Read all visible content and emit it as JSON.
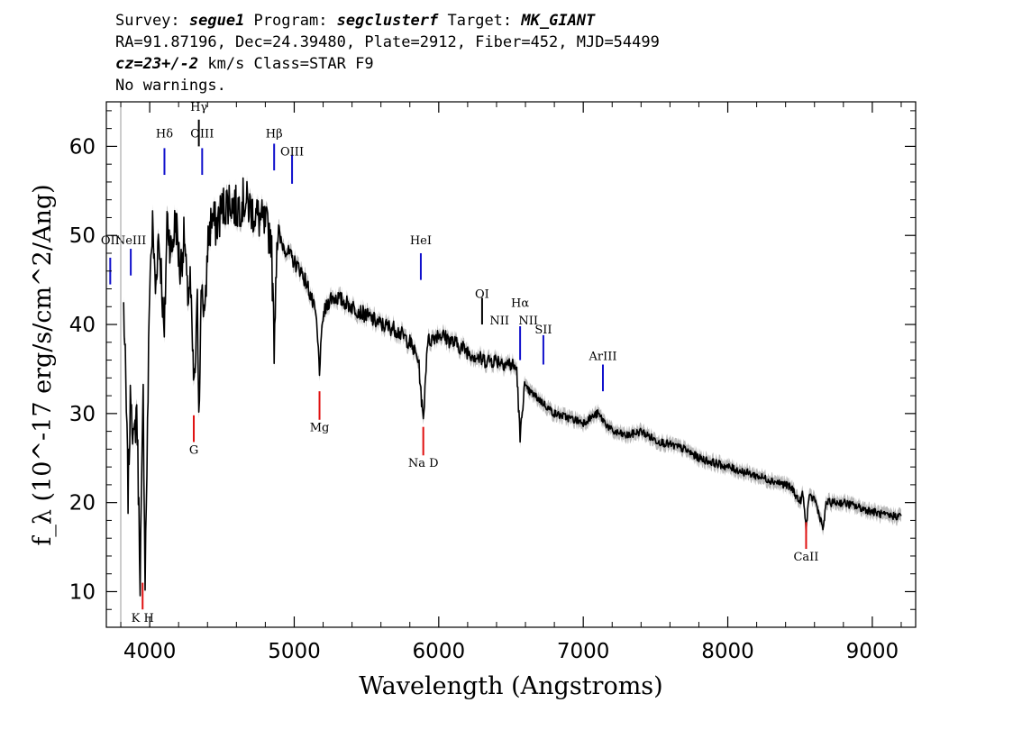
{
  "header": {
    "survey_label": "Survey: ",
    "survey": "segue1",
    "program_label": " Program: ",
    "program": "segclusterf",
    "target_label": " Target: ",
    "target": "MK_GIANT",
    "line2": "RA=91.87196, Dec=24.39480, Plate=2912, Fiber=452, MJD=54499",
    "cz_label": "cz=23+/-2",
    "line3_rest": " km/s Class=STAR F9",
    "line4": "No warnings."
  },
  "chart_data": {
    "type": "line",
    "xlabel": "Wavelength (Angstroms)",
    "ylabel": "f_λ (10^-17 erg/s/cm^2/Ang)",
    "xlim": [
      3700,
      9300
    ],
    "ylim": [
      6,
      65
    ],
    "x_ticks": [
      4000,
      5000,
      6000,
      7000,
      8000,
      9000
    ],
    "y_ticks": [
      10,
      20,
      30,
      40,
      50,
      60
    ],
    "grid": false,
    "colors": {
      "spectrum": "#000000",
      "error_band": "#a0a0a0",
      "emission": "#1010cc",
      "absorption": "#e01010",
      "marker": "#000000"
    },
    "spectrum_points": [
      [
        3820,
        42
      ],
      [
        3835,
        33
      ],
      [
        3850,
        21
      ],
      [
        3870,
        33
      ],
      [
        3890,
        26
      ],
      [
        3910,
        31
      ],
      [
        3925,
        19
      ],
      [
        3934,
        12
      ],
      [
        3945,
        22
      ],
      [
        3955,
        32
      ],
      [
        3968,
        12
      ],
      [
        3985,
        28
      ],
      [
        4000,
        45
      ],
      [
        4020,
        51
      ],
      [
        4040,
        44
      ],
      [
        4060,
        50
      ],
      [
        4080,
        46
      ],
      [
        4101,
        38
      ],
      [
        4120,
        52
      ],
      [
        4150,
        48
      ],
      [
        4180,
        52
      ],
      [
        4210,
        46
      ],
      [
        4240,
        50
      ],
      [
        4260,
        43
      ],
      [
        4280,
        45
      ],
      [
        4300,
        35
      ],
      [
        4310,
        33
      ],
      [
        4330,
        42
      ],
      [
        4340,
        31
      ],
      [
        4360,
        45
      ],
      [
        4383,
        40
      ],
      [
        4400,
        49
      ],
      [
        4430,
        52
      ],
      [
        4460,
        51
      ],
      [
        4500,
        53
      ],
      [
        4550,
        54
      ],
      [
        4600,
        53
      ],
      [
        4650,
        54
      ],
      [
        4700,
        53
      ],
      [
        4750,
        52
      ],
      [
        4800,
        51
      ],
      [
        4840,
        50
      ],
      [
        4861,
        38
      ],
      [
        4880,
        50
      ],
      [
        4920,
        49
      ],
      [
        4960,
        48
      ],
      [
        5000,
        47
      ],
      [
        5050,
        46
      ],
      [
        5100,
        44
      ],
      [
        5150,
        41
      ],
      [
        5175,
        35
      ],
      [
        5200,
        41
      ],
      [
        5250,
        43
      ],
      [
        5300,
        43
      ],
      [
        5400,
        42
      ],
      [
        5500,
        41
      ],
      [
        5600,
        40
      ],
      [
        5700,
        39.5
      ],
      [
        5800,
        38
      ],
      [
        5860,
        36
      ],
      [
        5893,
        29
      ],
      [
        5920,
        38
      ],
      [
        6000,
        39
      ],
      [
        6100,
        38
      ],
      [
        6200,
        37
      ],
      [
        6300,
        36
      ],
      [
        6400,
        36
      ],
      [
        6500,
        35.5
      ],
      [
        6540,
        35
      ],
      [
        6563,
        27
      ],
      [
        6590,
        33
      ],
      [
        6700,
        31.5
      ],
      [
        6800,
        30
      ],
      [
        6900,
        29.5
      ],
      [
        7000,
        29
      ],
      [
        7100,
        30
      ],
      [
        7200,
        28
      ],
      [
        7300,
        27.5
      ],
      [
        7400,
        28
      ],
      [
        7500,
        27
      ],
      [
        7600,
        26.5
      ],
      [
        7700,
        26
      ],
      [
        7800,
        25
      ],
      [
        7900,
        24.5
      ],
      [
        8000,
        24
      ],
      [
        8100,
        23.5
      ],
      [
        8200,
        23
      ],
      [
        8300,
        22.5
      ],
      [
        8400,
        22
      ],
      [
        8450,
        21.5
      ],
      [
        8498,
        20
      ],
      [
        8520,
        21
      ],
      [
        8542,
        17
      ],
      [
        8560,
        20.5
      ],
      [
        8600,
        20.5
      ],
      [
        8662,
        17
      ],
      [
        8680,
        20
      ],
      [
        8800,
        20
      ],
      [
        8900,
        19.5
      ],
      [
        9000,
        19
      ],
      [
        9100,
        18.5
      ],
      [
        9200,
        18.5
      ]
    ],
    "annotations": [
      {
        "label": "OII",
        "x": 3727,
        "y_text": 49.0,
        "color": "emission",
        "y1": 44.5,
        "y2": 47.5
      },
      {
        "label": "NeIII",
        "x": 3869,
        "y_text": 49.0,
        "color": "emission",
        "y1": 45.5,
        "y2": 48.5
      },
      {
        "label": "Hδ",
        "x": 4102,
        "y_text": 61.0,
        "color": "emission",
        "y1": 56.8,
        "y2": 59.8
      },
      {
        "label": "Hγ",
        "x": 4340,
        "y_text": 64.0,
        "color": "marker",
        "y1": 60.0,
        "y2": 63.0
      },
      {
        "label": "OIII",
        "x": 4363,
        "y_text": 61.0,
        "color": "emission",
        "y1": 56.8,
        "y2": 59.8
      },
      {
        "label": "Hβ",
        "x": 4861,
        "y_text": 61.0,
        "color": "emission",
        "y1": 57.3,
        "y2": 60.3
      },
      {
        "label": "OIII",
        "x": 4985,
        "y_text": 59.0,
        "color": "emission",
        "y1": 55.8,
        "y2": 59.0
      },
      {
        "label": "HeI",
        "x": 5876,
        "y_text": 49.0,
        "color": "emission",
        "y1": 45.0,
        "y2": 48.0
      },
      {
        "label": "OI",
        "x": 6300,
        "y_text": 43.0,
        "color": "marker",
        "y1": 40.0,
        "y2": 43.0
      },
      {
        "label": "NII",
        "x": 6420,
        "y_text": 40.0,
        "color": "marker",
        "y1": 0,
        "y2": 0
      },
      {
        "label": "Hα",
        "x": 6563,
        "y_text": 42.0,
        "color": "emission",
        "y1": 36.0,
        "y2": 39.8
      },
      {
        "label": "NII",
        "x": 6620,
        "y_text": 40.0,
        "color": "marker",
        "y1": 0,
        "y2": 0
      },
      {
        "label": "SII",
        "x": 6724,
        "y_text": 39.0,
        "color": "emission",
        "y1": 35.5,
        "y2": 38.8
      },
      {
        "label": "ArIII",
        "x": 7136,
        "y_text": 36.0,
        "color": "emission",
        "y1": 32.5,
        "y2": 35.5
      },
      {
        "label": "K H",
        "x": 3951,
        "y_text": 6.6,
        "color": "absorption",
        "y1": 8.0,
        "y2": 11.0
      },
      {
        "label": "G",
        "x": 4305,
        "y_text": 25.5,
        "color": "absorption",
        "y1": 26.8,
        "y2": 29.8
      },
      {
        "label": "Mg",
        "x": 5175,
        "y_text": 28.0,
        "color": "absorption",
        "y1": 29.3,
        "y2": 32.5
      },
      {
        "label": "Na D",
        "x": 5893,
        "y_text": 24.0,
        "color": "absorption",
        "y1": 25.3,
        "y2": 28.5
      },
      {
        "label": "CaII",
        "x": 8542,
        "y_text": 13.5,
        "color": "absorption",
        "y1": 14.8,
        "y2": 17.8
      }
    ]
  }
}
